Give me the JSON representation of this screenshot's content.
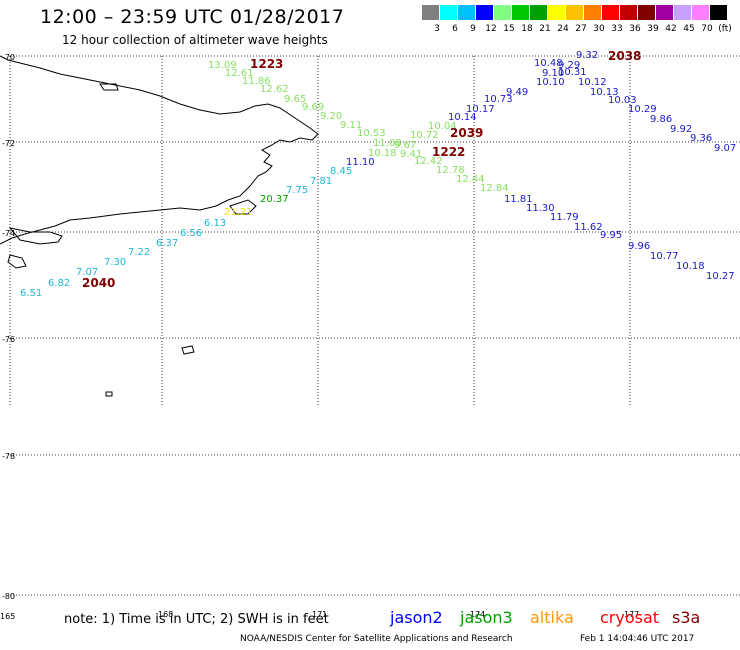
{
  "header": {
    "title": "12:00 – 23:59 UTC 01/28/2017",
    "subtitle": "12 hour collection of altimeter wave heights"
  },
  "legend": {
    "colors": [
      "#808080",
      "#00ffff",
      "#00bfff",
      "#0000ff",
      "#80ff80",
      "#00c800",
      "#00a000",
      "#ffff00",
      "#ffc000",
      "#ff8000",
      "#ff0000",
      "#c00000",
      "#800000",
      "#a000a0",
      "#c8a0ff",
      "#ff80ff",
      "#000000"
    ],
    "labels": [
      "3",
      "6",
      "9",
      "12",
      "15",
      "18",
      "21",
      "24",
      "27",
      "30",
      "33",
      "36",
      "39",
      "42",
      "45",
      "70",
      "(ft)"
    ]
  },
  "grid": {
    "lat_labels": [
      "-70",
      "-72",
      "-74",
      "-76",
      "-78",
      "-80"
    ],
    "lon_labels": [
      "165",
      "168",
      "171",
      "174",
      "177"
    ]
  },
  "tracks": [
    {
      "color": "#88e060",
      "time": "1223",
      "points": [
        "13.09",
        "12.61",
        "11.86",
        "12.62",
        "9.65",
        "9.69",
        "9.20",
        "9.11",
        "10.53",
        "11.08",
        "10.18",
        "9.67",
        "10.72",
        "10.04"
      ]
    },
    {
      "color": "#1a1acc",
      "time": "2038",
      "points": [
        "9.32",
        "10.48",
        "9.29",
        "9.10",
        "10.31",
        "10.10",
        "10.12",
        "10.13",
        "10.03",
        "10.29",
        "9.86",
        "9.92",
        "9.36",
        "9.07"
      ]
    },
    {
      "color": "#1a1acc",
      "time": "2039",
      "points": [
        "10.14",
        "10.17",
        "10.73",
        "9.49"
      ]
    },
    {
      "color": "#88e060",
      "time": "1222",
      "points": [
        "9.41",
        "12.42",
        "12.78",
        "12.44",
        "12.84"
      ]
    },
    {
      "color": "#1a1acc",
      "time": "",
      "points": [
        "11.10",
        "11.81",
        "11.30",
        "11.79",
        "11.62",
        "9.95",
        "9.96",
        "10.77",
        "10.18",
        "10.27"
      ]
    },
    {
      "color": "#20b8d8",
      "time": "2040",
      "points": [
        "8.45",
        "7.81",
        "7.75",
        "20.37",
        "21.21",
        "6.13",
        "6.56",
        "6.37",
        "7.22",
        "7.30",
        "7.07",
        "6.82",
        "6.51"
      ]
    }
  ],
  "note": {
    "text": "note:  1) Time is in UTC;  2) SWH is in feet"
  },
  "satellites": [
    {
      "name": "jason2",
      "color": "#0000ff"
    },
    {
      "name": "jason3",
      "color": "#00a000"
    },
    {
      "name": "altika",
      "color": "#ff9900"
    },
    {
      "name": "cryosat",
      "color": "#ff0000"
    },
    {
      "name": "s3a",
      "color": "#800000"
    }
  ],
  "footer": {
    "credit": "NOAA/NESDIS Center for Satellite Applications and Research",
    "timestamp": "Feb  1 14:04:46 UTC 2017"
  }
}
